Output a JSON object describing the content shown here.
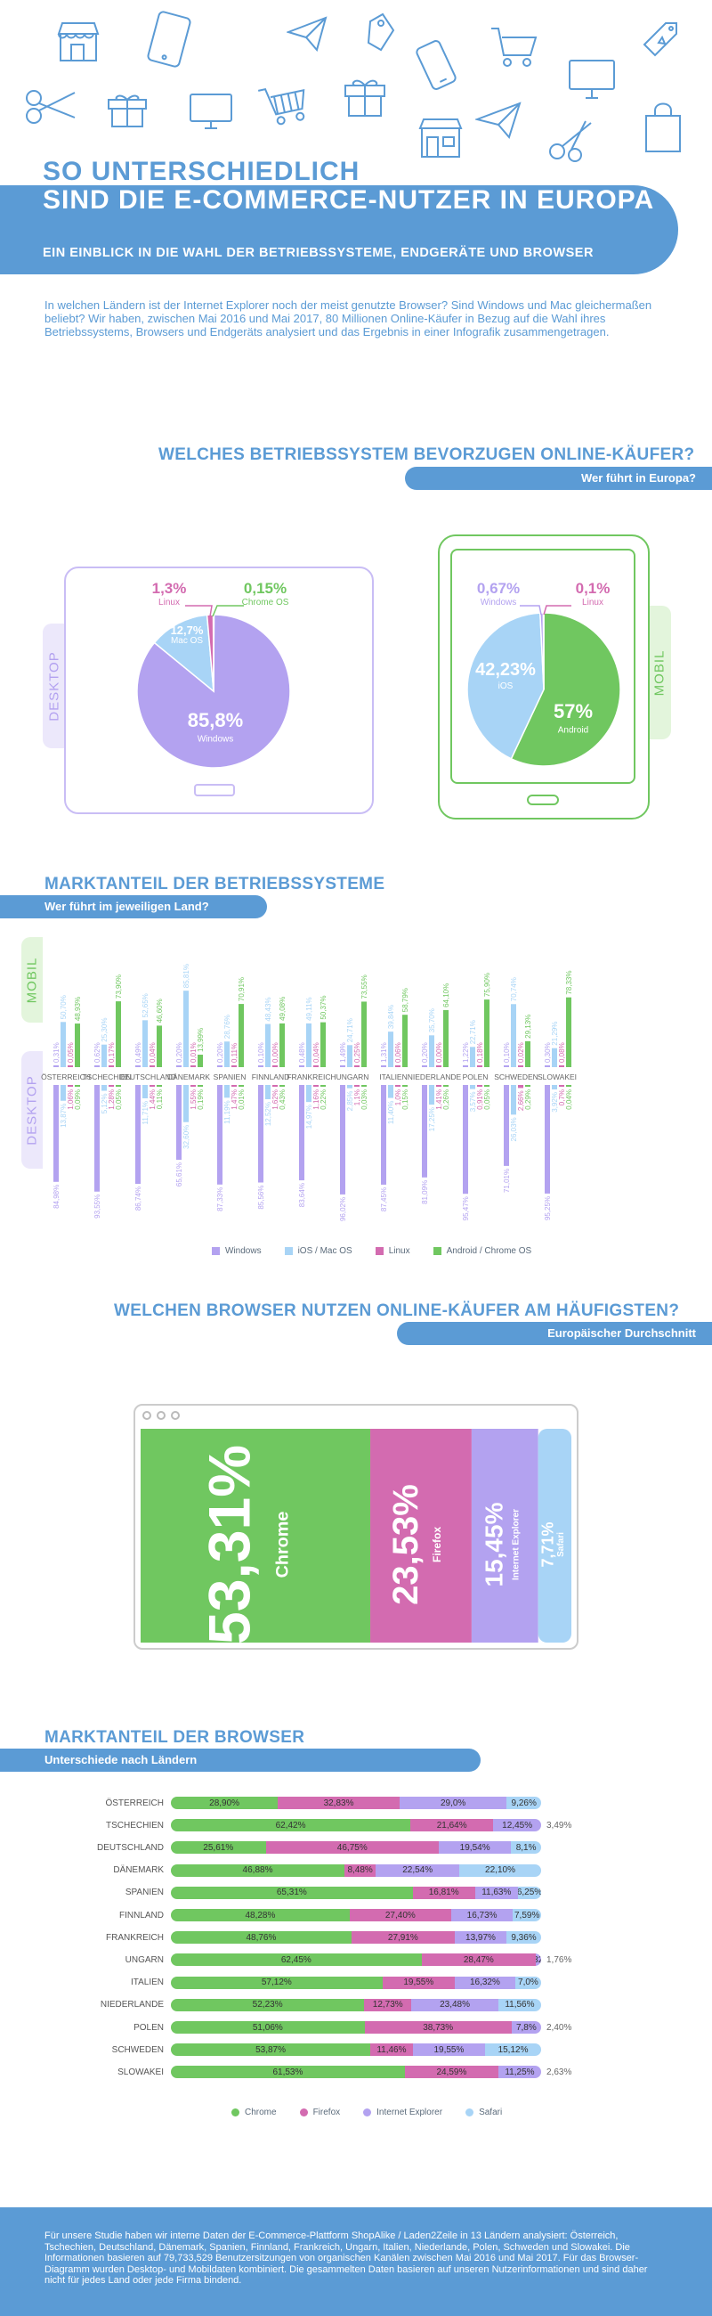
{
  "hero": {
    "title_line1": "SO UNTERSCHIEDLICH",
    "title_line2": "SIND DIE E-COMMERCE-NUTZER IN EUROPA",
    "subtitle": "EIN EINBLICK IN DIE WAHL DER BETRIEBSSYSTEME, ENDGERÄTE UND BROWSER",
    "intro": "In welchen Ländern ist der Internet Explorer noch der meist genutzte Browser? Sind Windows und Mac gleichermaßen beliebt? Wir haben, zwischen Mai 2016 und Mai 2017, 80 Millionen Online-Käufer in Bezug auf die Wahl ihres Betriebssystems, Browsers und Endgeräts analysiert und das Ergebnis in einer Infografik zusammengetragen.",
    "icons": [
      "shop-icon",
      "tablet-icon",
      "paper-plane-icon",
      "shopping-cart-icon",
      "price-tag-icon",
      "scissors-icon",
      "gift-icon",
      "monitor-icon",
      "shopping-bag-icon",
      "smartphone-icon"
    ]
  },
  "os_section": {
    "heading": "WELCHES BETRIEBSSYSTEM BEVORZUGEN ONLINE-KÄUFER?",
    "band": "Wer führt in Europa?",
    "desktop_tab": "DESKTOP",
    "mobile_tab": "MOBIL"
  },
  "market_os": {
    "heading": "MARKTANTEIL DER BETRIEBSSYSTEME",
    "band": "Wer führt im jeweiligen Land?",
    "mobile_tab": "MOBIL",
    "desktop_tab": "DESKTOP"
  },
  "browser_section": {
    "heading": "WELCHEN BROWSER NUTZEN ONLINE-KÄUFER AM HÄUFIGSTEN?",
    "band": "Europäischer Durchschnitt"
  },
  "browser_market": {
    "heading": "MARKTANTEIL DER BROWSER",
    "band": "Unterschiede nach Ländern"
  },
  "colors": {
    "windows": "#b3a2f0",
    "ios_mac": "#a8d4f6",
    "linux": "#d36bb0",
    "android": "#70c760",
    "brand": "#5b9bd5"
  },
  "chart_data": [
    {
      "type": "pie",
      "title": "",
      "device": "DESKTOP",
      "slices": [
        {
          "label": "Windows",
          "value": 85.8,
          "display": "85,8%",
          "color": "#b3a2f0"
        },
        {
          "label": "Mac OS",
          "value": 12.7,
          "display": "12,7%",
          "color": "#a8d4f6"
        },
        {
          "label": "Linux",
          "value": 1.3,
          "display": "1,3%",
          "color": "#d36bb0"
        },
        {
          "label": "Chrome OS",
          "value": 0.15,
          "display": "0,15%",
          "color": "#70c760"
        }
      ]
    },
    {
      "type": "pie",
      "title": "",
      "device": "MOBIL",
      "slices": [
        {
          "label": "Android",
          "value": 57,
          "display": "57%",
          "color": "#70c760"
        },
        {
          "label": "iOS",
          "value": 42.23,
          "display": "42,23%",
          "color": "#a8d4f6"
        },
        {
          "label": "Windows",
          "value": 0.67,
          "display": "0,67%",
          "color": "#b3a2f0"
        },
        {
          "label": "Linux",
          "value": 0.1,
          "display": "0,1%",
          "color": "#d36bb0"
        }
      ]
    },
    {
      "type": "bar",
      "title": "Mobil",
      "categories": [
        "ÖSTERREICH",
        "TSCHECHIEN",
        "DEUTSCHLAND",
        "DÄNEMARK",
        "SPANIEN",
        "FINNLAND",
        "FRANKREICH",
        "UNGARN",
        "ITALIEN",
        "NIEDERLANDE",
        "POLEN",
        "SCHWEDEN",
        "SLOWAKEI"
      ],
      "series": [
        {
          "name": "Windows",
          "values": [
            0.31,
            0.62,
            0.49,
            0.2,
            0.2,
            0.1,
            0.48,
            1.49,
            1.31,
            0.2,
            1.22,
            0.1,
            0.3
          ]
        },
        {
          "name": "iOS / Mac OS",
          "values": [
            50.7,
            25.3,
            52.65,
            85.81,
            28.76,
            48.43,
            49.11,
            24.71,
            39.84,
            35.7,
            22.71,
            70.74,
            21.29
          ]
        },
        {
          "name": "Linux",
          "values": [
            0.05,
            0.17,
            0.04,
            0.01,
            0.11,
            0.0,
            0.04,
            0.25,
            0.06,
            0.0,
            0.18,
            0.02,
            0.08
          ]
        },
        {
          "name": "Android / Chrome OS",
          "values": [
            48.93,
            73.9,
            46.6,
            13.99,
            70.91,
            49.08,
            50.37,
            73.55,
            58.79,
            64.1,
            75.9,
            29.13,
            78.33
          ]
        }
      ],
      "value_labels": [
        [
          "0,31%",
          "50,70%",
          "0,05%",
          "48,93%"
        ],
        [
          "0,62%",
          "25,30%",
          "0,17%",
          "73,90%"
        ],
        [
          "0,49%",
          "52,65%",
          "0,04%",
          "46,60%"
        ],
        [
          "0,20%",
          "85,81%",
          "0,01%",
          "13,99%"
        ],
        [
          "0,20%",
          "28,76%",
          "0,11%",
          "70,91%"
        ],
        [
          "0,10%",
          "48,43%",
          "0,00%",
          "49,08%"
        ],
        [
          "0,48%",
          "49,11%",
          "0,04%",
          "50,37%"
        ],
        [
          "1,49%",
          "24,71%",
          "0,25%",
          "73,55%"
        ],
        [
          "1,31%",
          "39,84%",
          "0,06%",
          "58,79%"
        ],
        [
          "0,20%",
          "35,70%",
          "0,00%",
          "64,10%"
        ],
        [
          "1,22%",
          "22,71%",
          "0,18%",
          "75,90%"
        ],
        [
          "0,10%",
          "70,74%",
          "0,02%",
          "29,13%"
        ],
        [
          "0,30%",
          "21,29%",
          "0,08%",
          "78,33%"
        ]
      ]
    },
    {
      "type": "bar",
      "title": "Desktop",
      "categories": [
        "ÖSTERREICH",
        "TSCHECHIEN",
        "DEUTSCHLAND",
        "DÄNEMARK",
        "SPANIEN",
        "FINNLAND",
        "FRANKREICH",
        "UNGARN",
        "ITALIEN",
        "NIEDERLANDE",
        "POLEN",
        "SCHWEDEN",
        "SLOWAKEI"
      ],
      "series": [
        {
          "name": "Windows",
          "values": [
            84.98,
            93.55,
            86.74,
            65.61,
            87.33,
            85.56,
            83.64,
            96.02,
            87.45,
            81.09,
            95.47,
            71.01,
            95.25
          ]
        },
        {
          "name": "iOS / Mac OS",
          "values": [
            13.87,
            5.12,
            11.71,
            32.6,
            11.19,
            12.52,
            14.97,
            2.85,
            11.4,
            17.25,
            3.57,
            26.03,
            3.92
          ]
        },
        {
          "name": "Linux",
          "values": [
            1.06,
            1.28,
            1.44,
            1.55,
            1.47,
            1.62,
            1.16,
            1.1,
            1.0,
            1.41,
            0.91,
            2.66,
            0.7
          ]
        },
        {
          "name": "Android / Chrome OS",
          "values": [
            0.09,
            0.05,
            0.11,
            0.19,
            0.01,
            0.43,
            0.22,
            0.03,
            0.15,
            0.26,
            0.05,
            0.29,
            0.04
          ]
        }
      ],
      "value_labels": [
        [
          "84,98%",
          "13,87%",
          "1,06%",
          "0,09%"
        ],
        [
          "93,55%",
          "5,12%",
          "1,28%",
          "0,05%"
        ],
        [
          "86,74%",
          "11,71%",
          "1,44%",
          "0,11%"
        ],
        [
          "65,61%",
          "32,60%",
          "1,55%",
          "0,19%"
        ],
        [
          "87,33%",
          "11,19%",
          "1,47%",
          "0,01%"
        ],
        [
          "85,56%",
          "12,52%",
          "1,62%",
          "0,43%"
        ],
        [
          "83,64%",
          "14,97%",
          "1,16%",
          "0,22%"
        ],
        [
          "96,02%",
          "2,85%",
          "1,1%",
          "0,03%"
        ],
        [
          "87,45%",
          "11,40%",
          "1,0%",
          "0,15%"
        ],
        [
          "81,09%",
          "17,25%",
          "1,41%",
          "0,26%"
        ],
        [
          "95,47%",
          "3,57%",
          "0,91%",
          "0,05%"
        ],
        [
          "71,01%",
          "26,03%",
          "2,66%",
          "0,29%"
        ],
        [
          "95,25%",
          "3,92%",
          "0,7%",
          "0,04%"
        ]
      ],
      "legend": [
        "Windows",
        "iOS / Mac OS",
        "Linux",
        "Android / Chrome OS"
      ]
    },
    {
      "type": "bar",
      "title": "",
      "orientation": "horizontal-stacked",
      "categories": [
        "Chrome",
        "Firefox",
        "Internet Explorer",
        "Safari"
      ],
      "values": [
        53.31,
        23.53,
        15.45,
        7.71
      ],
      "labels": [
        "53,31%",
        "23,53%",
        "15,45%",
        "7,71%"
      ]
    },
    {
      "type": "bar",
      "title": "",
      "orientation": "horizontal-stacked",
      "categories": [
        "ÖSTERREICH",
        "TSCHECHIEN",
        "DEUTSCHLAND",
        "DÄNEMARK",
        "SPANIEN",
        "FINNLAND",
        "FRANKREICH",
        "UNGARN",
        "ITALIEN",
        "NIEDERLANDE",
        "POLEN",
        "SCHWEDEN",
        "SLOWAKEI"
      ],
      "series": [
        {
          "name": "Chrome",
          "values": [
            28.9,
            62.42,
            25.61,
            46.88,
            65.31,
            48.28,
            48.76,
            62.45,
            57.12,
            52.23,
            51.06,
            53.87,
            61.53
          ]
        },
        {
          "name": "Firefox",
          "values": [
            32.83,
            21.64,
            46.75,
            8.48,
            16.81,
            27.4,
            27.91,
            28.47,
            19.55,
            12.73,
            38.73,
            11.46,
            24.59
          ]
        },
        {
          "name": "Internet Explorer",
          "values": [
            29.0,
            12.45,
            19.54,
            22.54,
            11.63,
            16.73,
            13.97,
            1.32,
            16.32,
            23.48,
            7.8,
            19.55,
            11.25
          ]
        },
        {
          "name": "Safari",
          "values": [
            9.26,
            3.49,
            8.1,
            22.1,
            6.25,
            7.59,
            9.36,
            1.76,
            7.0,
            11.56,
            2.4,
            15.12,
            2.63
          ]
        }
      ],
      "labels": [
        [
          "28,90%",
          "32,83%",
          "29,0%",
          "9,26%"
        ],
        [
          "62,42%",
          "21,64%",
          "12,45%",
          "3,49%"
        ],
        [
          "25,61%",
          "46,75%",
          "19,54%",
          "8,1%"
        ],
        [
          "46,88%",
          "8,48%",
          "22,54%",
          "22,10%"
        ],
        [
          "65,31%",
          "16,81%",
          "11,63%",
          "6,25%"
        ],
        [
          "48,28%",
          "27,40%",
          "16,73%",
          "7,59%"
        ],
        [
          "48,76%",
          "27,91%",
          "13,97%",
          "9,36%"
        ],
        [
          "62,45%",
          "28,47%",
          "1,32%",
          "1,76%"
        ],
        [
          "57,12%",
          "19,55%",
          "16,32%",
          "7,0%"
        ],
        [
          "52,23%",
          "12,73%",
          "23,48%",
          "11,56%"
        ],
        [
          "51,06%",
          "38,73%",
          "7,8%",
          "2,40%"
        ],
        [
          "53,87%",
          "11,46%",
          "19,55%",
          "15,12%"
        ],
        [
          "61,53%",
          "24,59%",
          "11,25%",
          "2,63%"
        ]
      ],
      "legend": [
        "Chrome",
        "Firefox",
        "Internet Explorer",
        "Safari"
      ]
    }
  ],
  "footer": "Für unsere Studie haben wir interne Daten der E-Commerce-Plattform ShopAlike / Laden2Zeile in 13 Ländern analysiert: Österreich, Tschechien, Deutschland, Dänemark, Spanien, Finnland, Frankreich, Ungarn, Italien, Niederlande, Polen, Schweden und Slowakei. Die Informationen basieren auf 79,733,529 Benutzersitzungen von organischen Kanälen zwischen Mai 2016 und Mai 2017. Für das Browser-Diagramm wurden Desktop- und Mobildaten kombiniert. Die gesammelten Daten basieren auf unseren Nutzerinformationen und sind daher nicht für jedes Land oder jede Firma bindend."
}
